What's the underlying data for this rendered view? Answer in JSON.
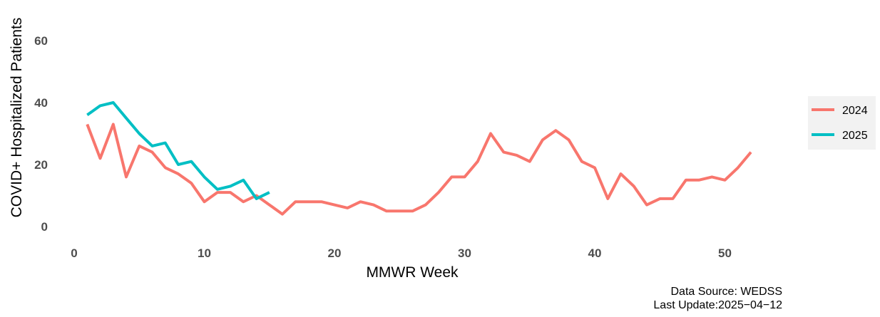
{
  "chart_data": {
    "type": "line",
    "xlabel": "MMWR Week",
    "ylabel": "COVID+ Hospitalized Patients",
    "xlim": [
      0,
      53
    ],
    "ylim": [
      -1,
      67
    ],
    "x_ticks": [
      0,
      10,
      20,
      30,
      40,
      50
    ],
    "y_ticks": [
      0,
      20,
      40,
      60
    ],
    "grid": false,
    "legend_position": "right",
    "series": [
      {
        "name": "2024",
        "color": "#F8766D",
        "x": [
          1,
          2,
          3,
          4,
          5,
          6,
          7,
          8,
          9,
          10,
          11,
          12,
          13,
          14,
          15,
          16,
          17,
          18,
          19,
          20,
          21,
          22,
          23,
          24,
          25,
          26,
          27,
          28,
          29,
          30,
          31,
          32,
          33,
          34,
          35,
          36,
          37,
          38,
          39,
          40,
          41,
          42,
          43,
          44,
          45,
          46,
          47,
          48,
          49,
          50,
          51,
          52
        ],
        "values": [
          33,
          22,
          33,
          16,
          26,
          24,
          19,
          17,
          14,
          8,
          11,
          11,
          8,
          10,
          7,
          4,
          8,
          8,
          8,
          7,
          6,
          8,
          7,
          5,
          5,
          5,
          7,
          11,
          16,
          16,
          21,
          30,
          24,
          23,
          21,
          28,
          31,
          28,
          21,
          19,
          9,
          17,
          13,
          7,
          9,
          9,
          15,
          15,
          16,
          15,
          19,
          24
        ]
      },
      {
        "name": "2025",
        "color": "#00BFC4",
        "x": [
          1,
          2,
          3,
          4,
          5,
          6,
          7,
          8,
          9,
          10,
          11,
          12,
          13,
          14,
          15
        ],
        "values": [
          36,
          39,
          40,
          35,
          30,
          26,
          27,
          20,
          21,
          16,
          12,
          13,
          15,
          9,
          11
        ]
      }
    ]
  },
  "caption": {
    "source": "Data Source: WEDSS",
    "updated": "Last Update:2025−04−12"
  }
}
